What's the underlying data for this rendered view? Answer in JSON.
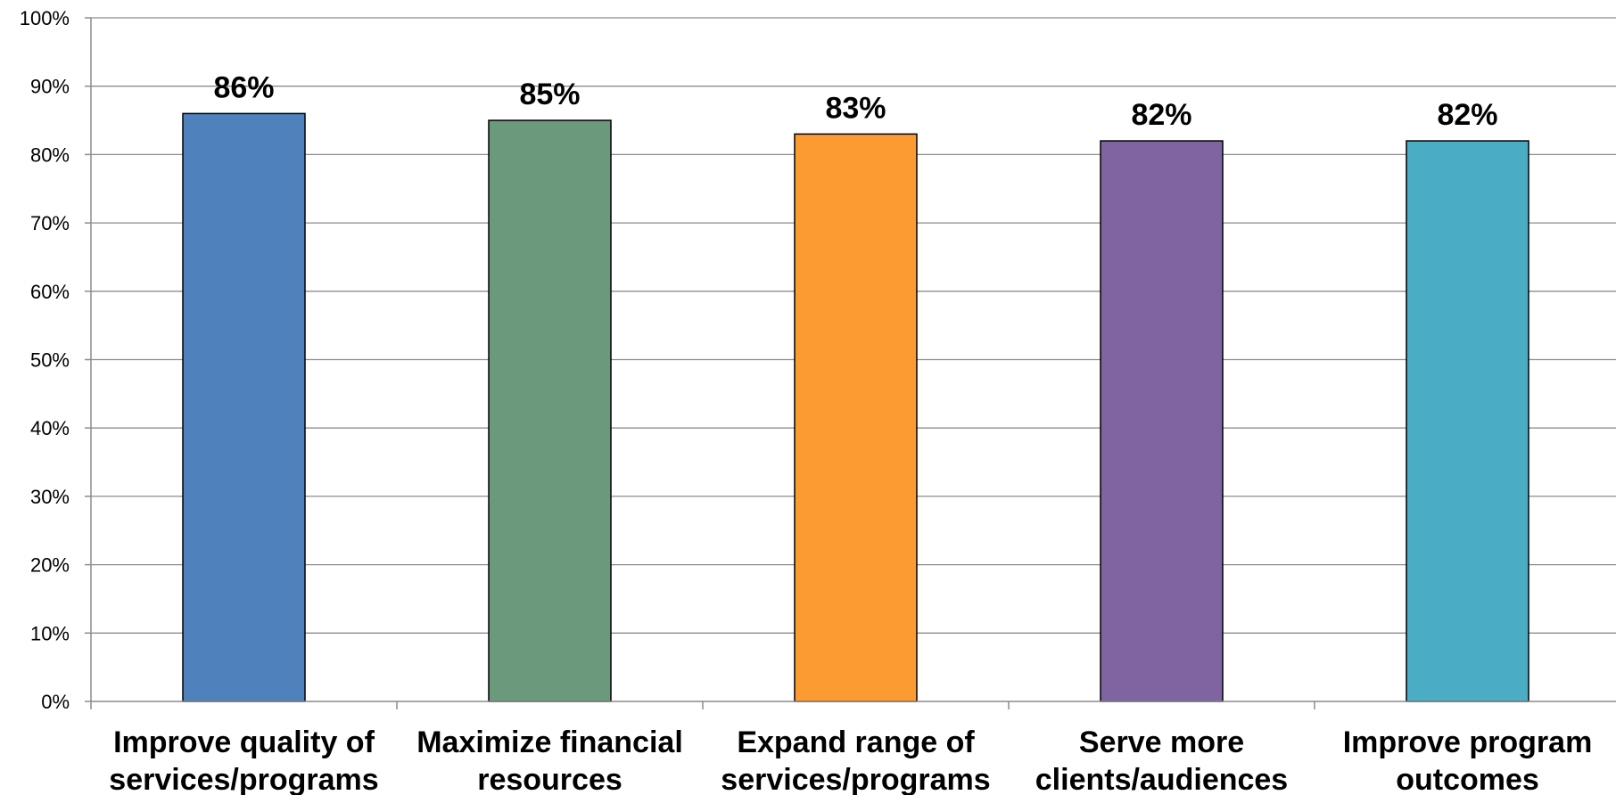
{
  "chart_data": {
    "type": "bar",
    "categories": [
      [
        "Improve quality of",
        "services/programs"
      ],
      [
        "Maximize financial",
        "resources"
      ],
      [
        "Expand range of",
        "services/programs"
      ],
      [
        "Serve more",
        "clients/audiences"
      ],
      [
        "Improve program",
        "outcomes"
      ]
    ],
    "values": [
      86,
      85,
      83,
      82,
      82
    ],
    "data_labels": [
      "86%",
      "85%",
      "83%",
      "82%",
      "82%"
    ],
    "bar_colors": [
      "#4f81bd",
      "#6a9a7b",
      "#fd9b33",
      "#8064a2",
      "#4bacc6"
    ],
    "ylim": [
      0,
      100
    ],
    "y_ticks": [
      0,
      10,
      20,
      30,
      40,
      50,
      60,
      70,
      80,
      90,
      100
    ],
    "y_tick_labels": [
      "0%",
      "10%",
      "20%",
      "30%",
      "40%",
      "50%",
      "60%",
      "70%",
      "80%",
      "90%",
      "100%"
    ],
    "title": "",
    "xlabel": "",
    "ylabel": "",
    "grid": true,
    "legend": "none"
  }
}
